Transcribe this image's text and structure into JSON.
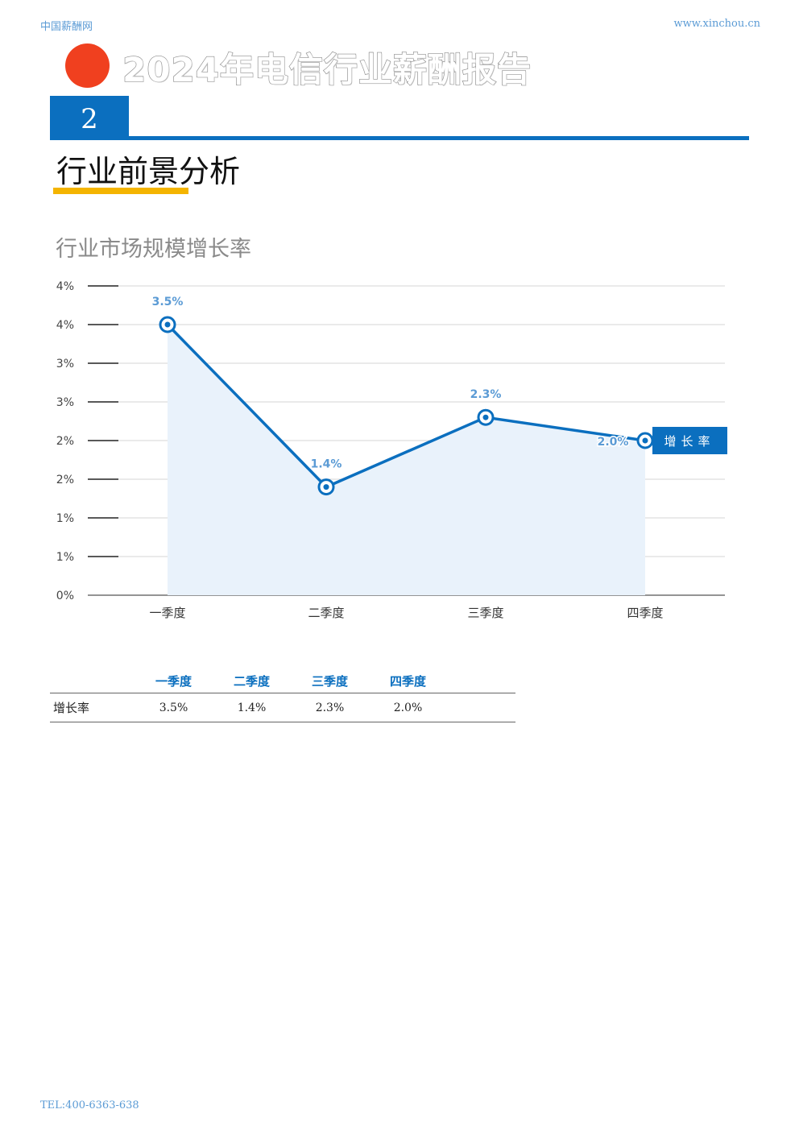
{
  "header": {
    "site_name": "中国薪酬网",
    "url": "www.xinchou.cn"
  },
  "report": {
    "title": "2024年电信行业薪酬报告",
    "chapter_number": "2"
  },
  "section": {
    "title": "行业前景分析"
  },
  "chart_title": "行业市场规模增长率",
  "chart_data": {
    "type": "line",
    "title": "行业市场规模增长率",
    "categories": [
      "一季度",
      "二季度",
      "三季度",
      "四季度"
    ],
    "series": [
      {
        "name": "增长率",
        "values": [
          3.5,
          1.4,
          2.3,
          2.0
        ],
        "labels": [
          "3.5%",
          "1.4%",
          "2.3%",
          "2.0%"
        ]
      }
    ],
    "ylim": [
      0,
      4
    ],
    "y_tick_labels": [
      "0%",
      "1%",
      "1%",
      "2%",
      "2%",
      "3%",
      "3%",
      "4%",
      "4%"
    ],
    "grid": true,
    "area_fill": true,
    "legend_position": "right",
    "colors": {
      "line": "#0b6fbf",
      "area": "#e9f2fb",
      "label": "#5b9bd5"
    }
  },
  "table": {
    "headers": [
      "",
      "一季度",
      "二季度",
      "三季度",
      "四季度",
      ""
    ],
    "rows": [
      {
        "label": "增长率",
        "values": [
          "3.5%",
          "1.4%",
          "2.3%",
          "2.0%"
        ]
      }
    ]
  },
  "footer": {
    "tel": "TEL:400-6363-638"
  }
}
